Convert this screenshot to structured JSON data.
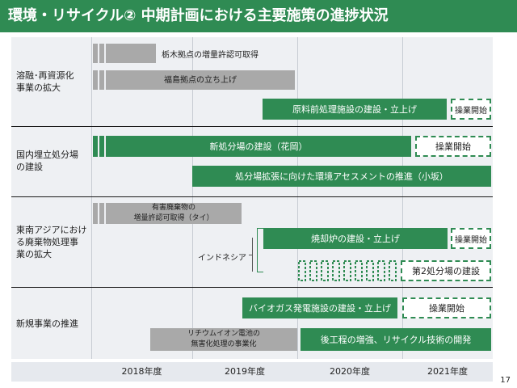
{
  "title": "環境・リサイクル② 中期計画における主要施策の進捗状況",
  "page_number": "17",
  "years": [
    "2018年度",
    "2019年度",
    "2020年度",
    "2021年度"
  ],
  "categories": [
    {
      "line1": "溶融･再資源化",
      "line2": "事業の拡大"
    },
    {
      "line1": "国内埋立処分場",
      "line2": "の建設"
    },
    {
      "line1": "東南アジアにおけ",
      "line2": "る廃棄物処理事",
      "line3": "業の拡大"
    },
    {
      "line1": "新規事業の推進"
    }
  ],
  "bars": {
    "tochigi": "栃木拠点の増量許認可取得",
    "fukushima": "福島拠点の立ち上げ",
    "raw_material": "原料前処理施設の建設・立上げ",
    "new_site": "新処分場の建設（花岡）",
    "expansion": "処分場拡張に向けた環境アセスメントの推進（小坂）",
    "hazardous_1": "有害廃棄物の",
    "hazardous_2": "増量許認可取得（タイ）",
    "incinerator": "焼却炉の建設・立上げ",
    "second_site": "第2処分場の建設",
    "biogas": "バイオガス発電施設の建設・立上げ",
    "lithium_1": "リチウムイオン電池の",
    "lithium_2": "無害化処理の事業化",
    "post_process": "後工程の増強、リサイクル技術の開発"
  },
  "start_labels": {
    "op1": "操業開始",
    "op2": "操業開始",
    "op3": "操業開始",
    "op4": "操業開始"
  },
  "indonesia_label": "インドネシア",
  "colors": {
    "green": "#2f8b53",
    "gray": "#a9a9a9"
  }
}
